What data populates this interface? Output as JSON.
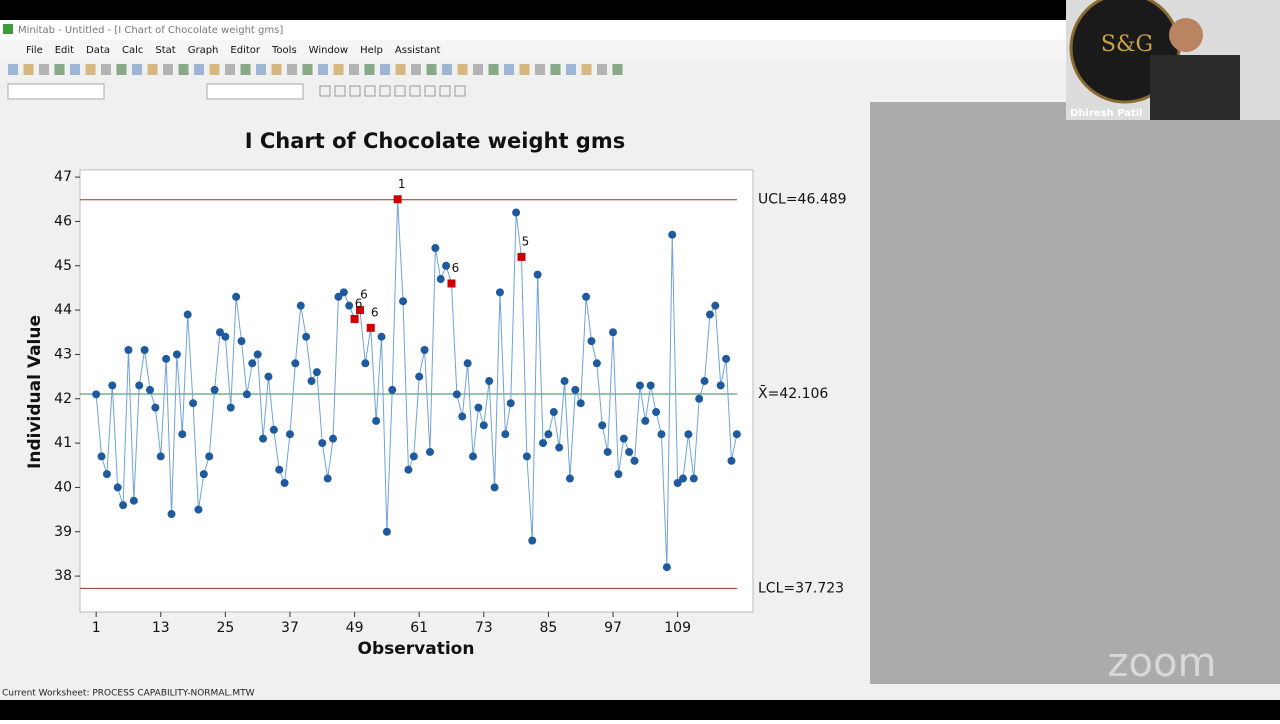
{
  "window": {
    "title": "Minitab - Untitled - [I Chart of Chocolate weight gms]"
  },
  "menus": [
    "File",
    "Edit",
    "Data",
    "Calc",
    "Stat",
    "Graph",
    "Editor",
    "Tools",
    "Window",
    "Help",
    "Assistant"
  ],
  "status_bar": "Current Worksheet: PROCESS CAPABILITY-NORMAL.MTW",
  "webcam": {
    "logo": "S&G",
    "name": "Dhiresh Patil"
  },
  "watermark": "zoom",
  "chart_data": {
    "type": "line",
    "title": "I Chart of Chocolate weight gms",
    "x_label": "Observation",
    "y_label": "Individual Value",
    "x": [
      1,
      2,
      3,
      4,
      5,
      6,
      7,
      8,
      9,
      10,
      11,
      12,
      13,
      14,
      15,
      16,
      17,
      18,
      19,
      20,
      21,
      22,
      23,
      24,
      25,
      26,
      27,
      28,
      29,
      30,
      31,
      32,
      33,
      34,
      35,
      36,
      37,
      38,
      39,
      40,
      41,
      42,
      43,
      44,
      45,
      46,
      47,
      48,
      49,
      50,
      51,
      52,
      53,
      54,
      55,
      56,
      57,
      58,
      59,
      60,
      61,
      62,
      63,
      64,
      65,
      66,
      67,
      68,
      69,
      70,
      71,
      72,
      73,
      74,
      75,
      76,
      77,
      78,
      79,
      80,
      81,
      82,
      83,
      84,
      85,
      86,
      87,
      88,
      89,
      90,
      91,
      92,
      93,
      94,
      95,
      96,
      97,
      98,
      99,
      100,
      101,
      102,
      103,
      104,
      105,
      106,
      107,
      108,
      109,
      110,
      111,
      112,
      113,
      114,
      115,
      116,
      117,
      118,
      119,
      120
    ],
    "values": [
      42.1,
      40.7,
      40.3,
      42.3,
      40.0,
      39.6,
      43.1,
      39.7,
      42.3,
      43.1,
      42.2,
      41.8,
      40.7,
      42.9,
      39.4,
      43.0,
      41.2,
      43.9,
      41.9,
      39.5,
      40.3,
      40.7,
      42.2,
      43.5,
      43.4,
      41.8,
      44.3,
      43.3,
      42.1,
      42.8,
      43.0,
      41.1,
      42.5,
      41.3,
      40.4,
      40.1,
      41.2,
      42.8,
      44.1,
      43.4,
      42.4,
      42.6,
      41.0,
      40.2,
      41.1,
      44.3,
      44.4,
      44.1,
      43.8,
      44.0,
      42.8,
      43.6,
      41.5,
      43.4,
      39.0,
      42.2,
      46.5,
      44.2,
      40.4,
      40.7,
      42.5,
      43.1,
      40.8,
      45.4,
      44.7,
      45.0,
      44.6,
      42.1,
      41.6,
      42.8,
      40.7,
      41.8,
      41.4,
      42.4,
      40.0,
      44.4,
      41.2,
      41.9,
      46.2,
      45.2,
      40.7,
      38.8,
      44.8,
      41.0,
      41.2,
      41.7,
      40.9,
      42.4,
      40.2,
      42.2,
      41.9,
      44.3,
      43.3,
      42.8,
      41.4,
      40.8,
      43.5,
      40.3,
      41.1,
      40.8,
      40.6,
      42.3,
      41.5,
      42.3,
      41.7,
      41.2,
      38.2,
      45.7,
      40.1,
      40.2,
      41.2,
      40.2,
      42.0,
      42.4,
      43.9,
      44.1,
      42.3,
      42.9,
      40.6,
      41.2
    ],
    "line_color": "#6fa3d8",
    "marker_color": "#1f5a9e",
    "flag_color": "#cc0000",
    "flags": [
      {
        "x": 49,
        "label": "6"
      },
      {
        "x": 50,
        "label": "6"
      },
      {
        "x": 52,
        "label": "6"
      },
      {
        "x": 57,
        "label": "1"
      },
      {
        "x": 67,
        "label": "6"
      },
      {
        "x": 80,
        "label": "5"
      }
    ],
    "control_lines": [
      {
        "value": 46.489,
        "label": "UCL=46.489",
        "color": "#9b3030"
      },
      {
        "value": 42.106,
        "label": "X̄=42.106",
        "color": "#2e8b57"
      },
      {
        "value": 37.723,
        "label": "LCL=37.723",
        "color": "#9b3030"
      }
    ],
    "xlim": [
      -2,
      123
    ],
    "ylim": [
      37.19,
      47.16
    ],
    "xticks": [
      1,
      13,
      25,
      37,
      49,
      61,
      73,
      85,
      97,
      109
    ],
    "yticks": [
      38,
      39,
      40,
      41,
      42,
      43,
      44,
      45,
      46,
      47
    ]
  }
}
